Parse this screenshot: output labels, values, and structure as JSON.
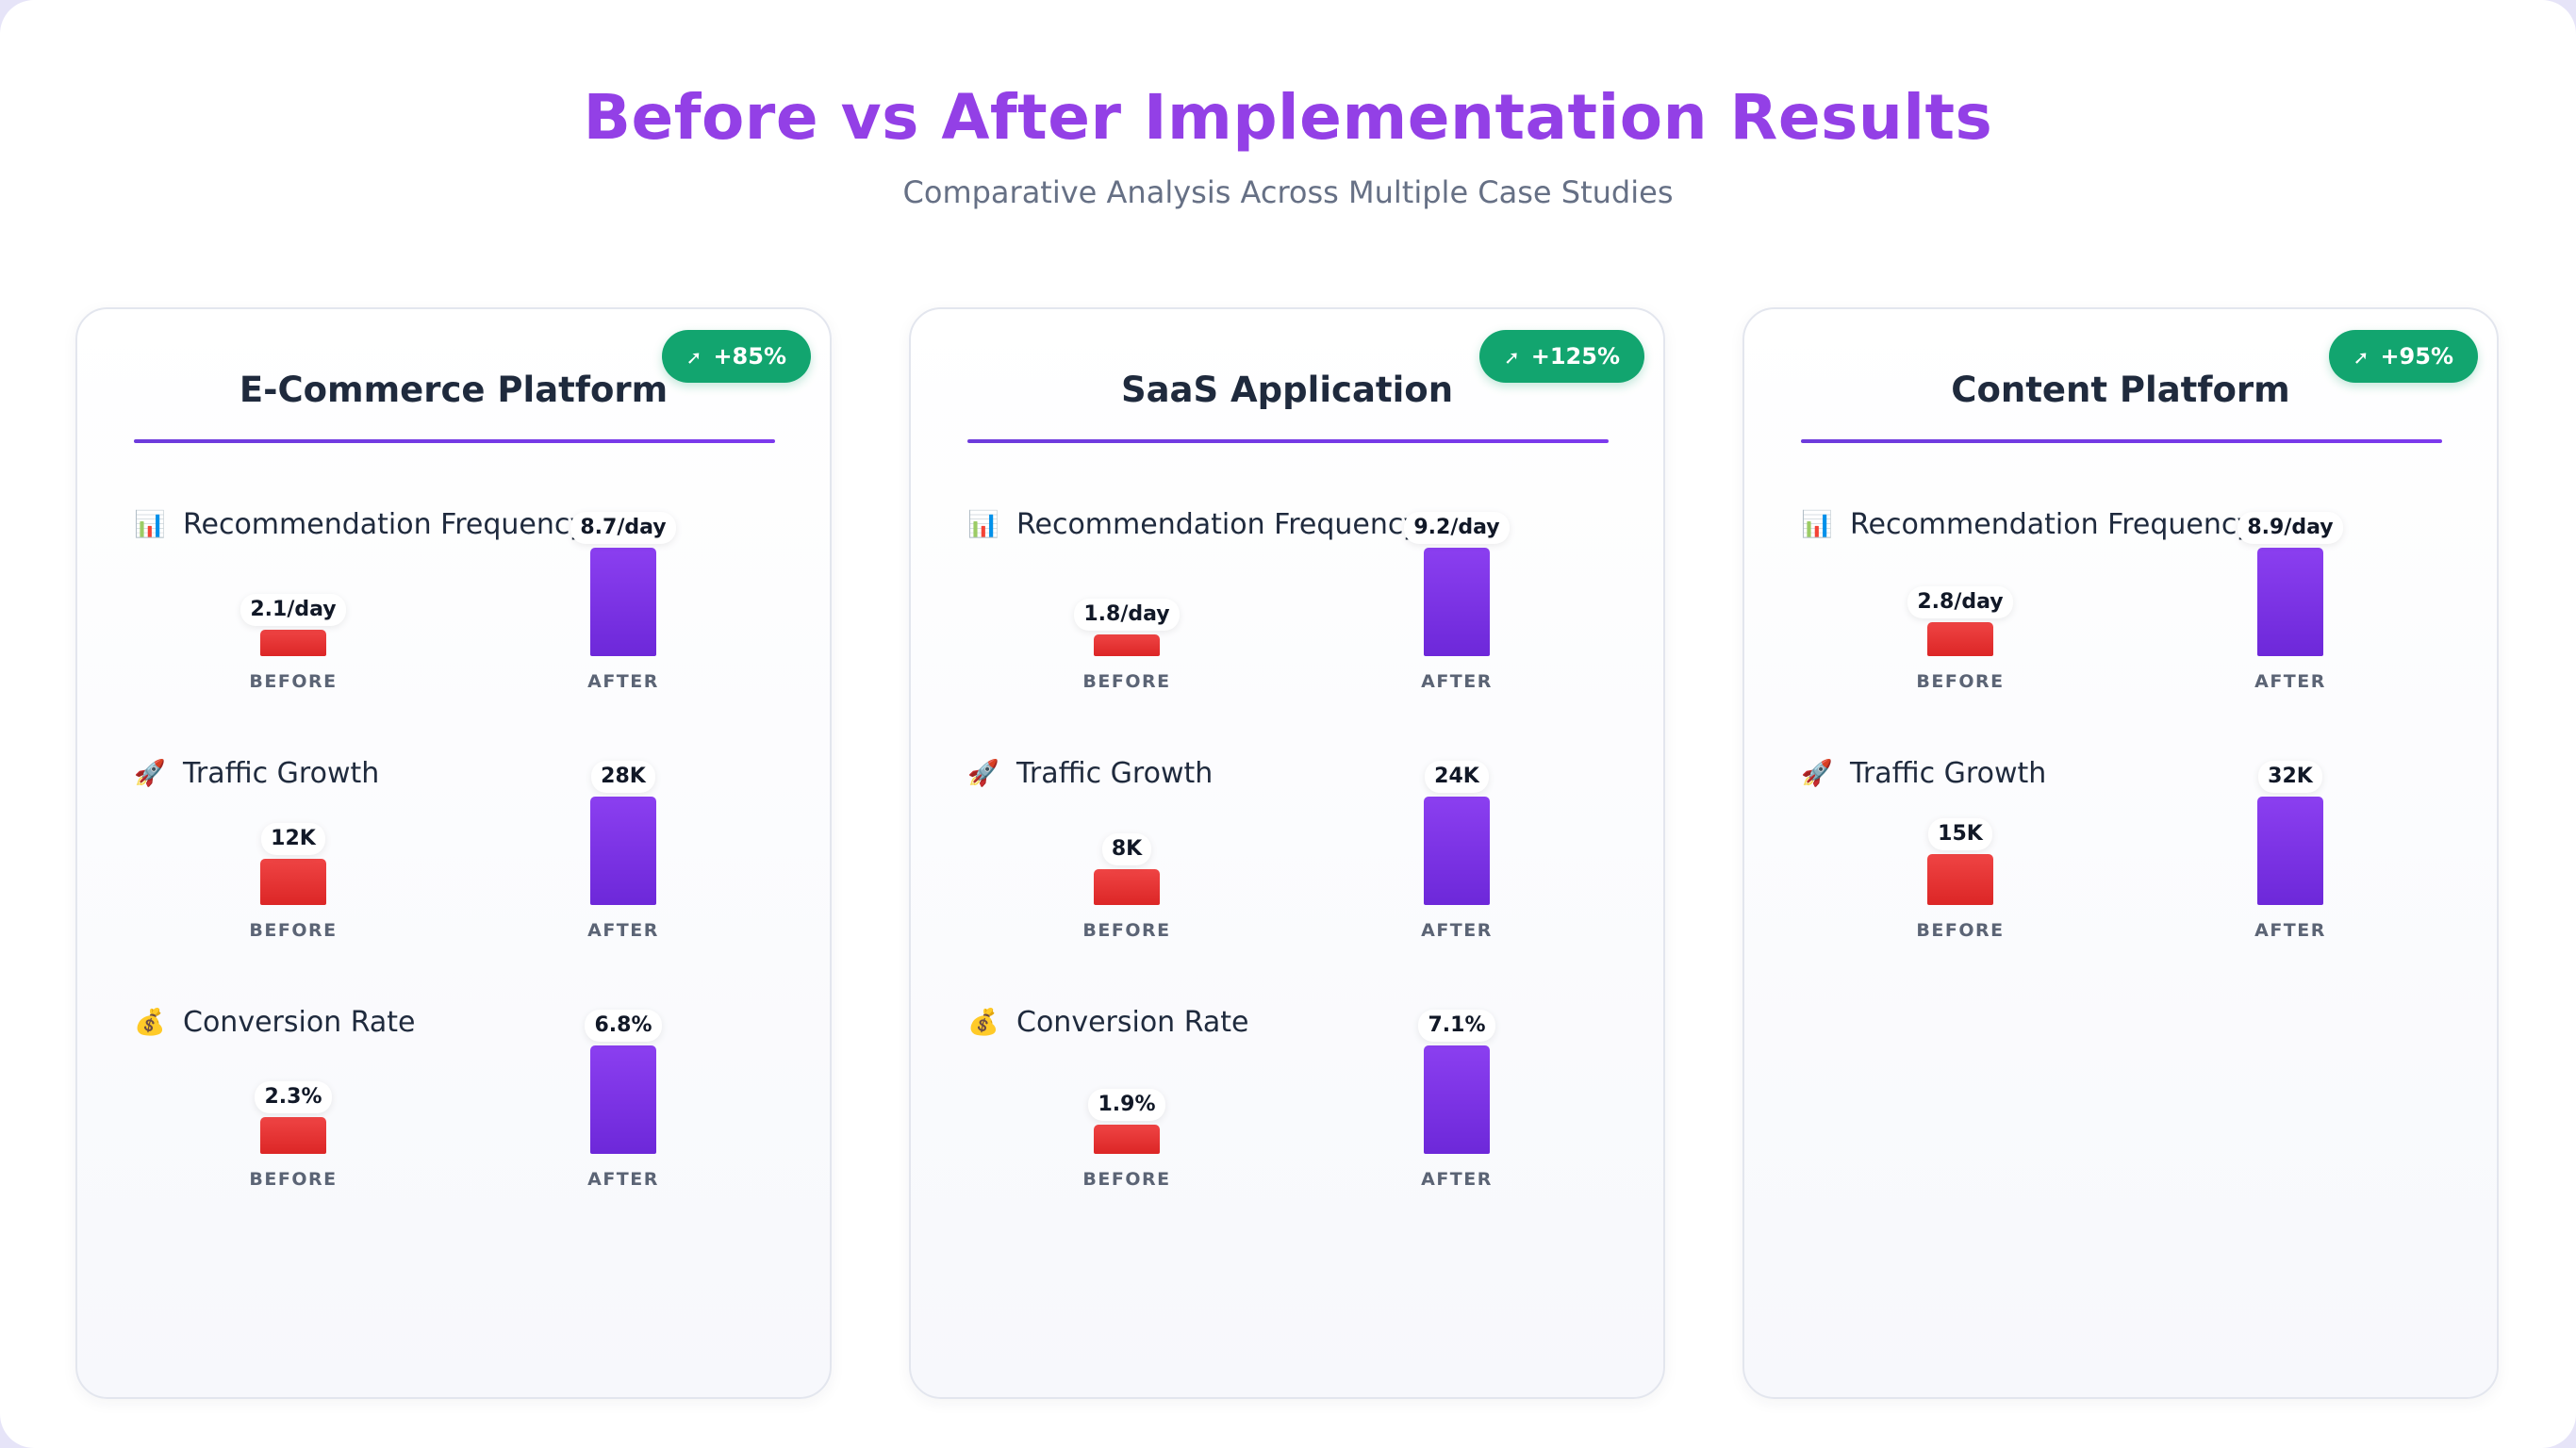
{
  "header": {
    "title": "Before vs After Implementation Results",
    "subtitle": "Comparative Analysis Across Multiple Case Studies"
  },
  "labels": {
    "before": "BEFORE",
    "after": "AFTER"
  },
  "colors": {
    "before": "#dc2626",
    "after": "#7c3aed",
    "badge": "#12a56f",
    "title": "#9340e6"
  },
  "chart_data": [
    {
      "type": "bar",
      "title": "E-Commerce Platform",
      "badge": "+85%",
      "badge_icon": "arrow-up-right-icon",
      "metrics": [
        {
          "name": "Recommendation Frequency",
          "icon": "📊",
          "icon_name": "bar-chart-icon",
          "before": 2.1,
          "after": 8.7,
          "before_label": "2.1/day",
          "after_label": "8.7/day"
        },
        {
          "name": "Traffic Growth",
          "icon": "🚀",
          "icon_name": "rocket-icon",
          "before": 12,
          "after": 28,
          "before_label": "12K",
          "after_label": "28K"
        },
        {
          "name": "Conversion Rate",
          "icon": "💰",
          "icon_name": "money-bag-icon",
          "before": 2.3,
          "after": 6.8,
          "before_label": "2.3%",
          "after_label": "6.8%"
        }
      ]
    },
    {
      "type": "bar",
      "title": "SaaS Application",
      "badge": "+125%",
      "badge_icon": "arrow-up-right-icon",
      "metrics": [
        {
          "name": "Recommendation Frequency",
          "icon": "📊",
          "icon_name": "bar-chart-icon",
          "before": 1.8,
          "after": 9.2,
          "before_label": "1.8/day",
          "after_label": "9.2/day"
        },
        {
          "name": "Traffic Growth",
          "icon": "🚀",
          "icon_name": "rocket-icon",
          "before": 8,
          "after": 24,
          "before_label": "8K",
          "after_label": "24K"
        },
        {
          "name": "Conversion Rate",
          "icon": "💰",
          "icon_name": "money-bag-icon",
          "before": 1.9,
          "after": 7.1,
          "before_label": "1.9%",
          "after_label": "7.1%"
        }
      ]
    },
    {
      "type": "bar",
      "title": "Content Platform",
      "badge": "+95%",
      "badge_icon": "arrow-up-right-icon",
      "metrics": [
        {
          "name": "Recommendation Frequency",
          "icon": "📊",
          "icon_name": "bar-chart-icon",
          "before": 2.8,
          "after": 8.9,
          "before_label": "2.8/day",
          "after_label": "8.9/day"
        },
        {
          "name": "Traffic Growth",
          "icon": "🚀",
          "icon_name": "rocket-icon",
          "before": 15,
          "after": 32,
          "before_label": "15K",
          "after_label": "32K"
        }
      ]
    }
  ]
}
